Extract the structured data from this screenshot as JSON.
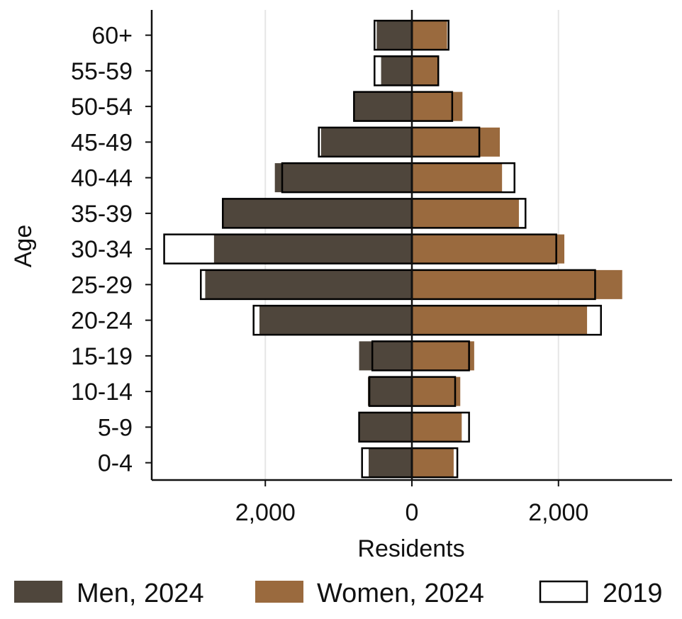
{
  "chart_data": {
    "type": "bar",
    "orientation": "horizontal",
    "subtype": "population-pyramid",
    "title": "",
    "xlabel": "Residents",
    "ylabel": "Age",
    "xlim": [
      -3550,
      3550
    ],
    "x_ticks": [
      -2000,
      0,
      2000
    ],
    "x_tick_labels": [
      "2,000",
      "0",
      "2,000"
    ],
    "grid": "vertical",
    "legend_position": "bottom",
    "categories": [
      "0-4",
      "5-9",
      "10-14",
      "15-19",
      "20-24",
      "25-29",
      "30-34",
      "35-39",
      "40-44",
      "45-49",
      "50-54",
      "55-59",
      "60+"
    ],
    "series": [
      {
        "name": "Men, 2024",
        "side": "left",
        "color": "#4f463c",
        "values": [
          590,
          710,
          600,
          720,
          2080,
          2820,
          2700,
          2580,
          1870,
          1240,
          780,
          420,
          480
        ]
      },
      {
        "name": "Women, 2024",
        "side": "right",
        "color": "#9a6a3e",
        "values": [
          570,
          680,
          660,
          850,
          2390,
          2870,
          2080,
          1460,
          1230,
          1200,
          690,
          360,
          480
        ]
      },
      {
        "name": "2019",
        "style": "outline",
        "color": "#000000",
        "men": [
          680,
          720,
          580,
          540,
          2160,
          2880,
          3380,
          2580,
          1770,
          1270,
          790,
          510,
          510
        ],
        "women": [
          620,
          780,
          590,
          780,
          2580,
          2500,
          1970,
          1550,
          1400,
          920,
          550,
          360,
          500
        ]
      }
    ]
  }
}
